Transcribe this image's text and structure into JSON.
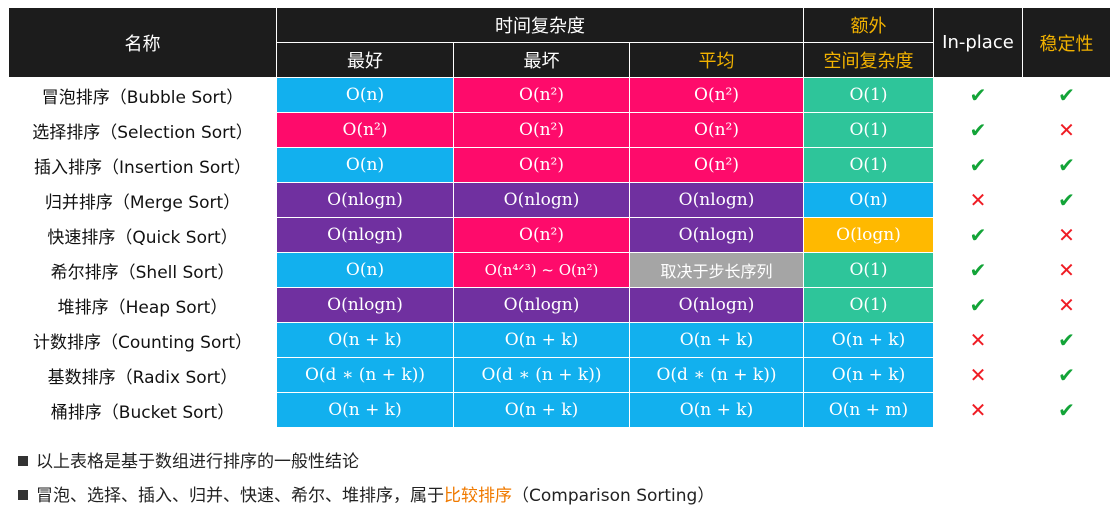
{
  "header": {
    "name": "名称",
    "time_group": "时间复杂度",
    "best": "最好",
    "worst": "最坏",
    "average": "平均",
    "space_line1": "额外",
    "space_line2": "空间复杂度",
    "inplace": "In-place",
    "stable": "稳定性"
  },
  "rows": [
    {
      "name": "冒泡排序（Bubble Sort）",
      "best": "O(n)",
      "worst": "O(n²)",
      "avg": "O(n²)",
      "space": "O(1)",
      "inplace": "✔",
      "stable": "✔"
    },
    {
      "name": "选择排序（Selection Sort）",
      "best": "O(n²)",
      "worst": "O(n²)",
      "avg": "O(n²)",
      "space": "O(1)",
      "inplace": "✔",
      "stable": "✕"
    },
    {
      "name": "插入排序（Insertion Sort）",
      "best": "O(n)",
      "worst": "O(n²)",
      "avg": "O(n²)",
      "space": "O(1)",
      "inplace": "✔",
      "stable": "✔"
    },
    {
      "name": "归并排序（Merge Sort）",
      "best": "O(nlogn)",
      "worst": "O(nlogn)",
      "avg": "O(nlogn)",
      "space": "O(n)",
      "inplace": "✕",
      "stable": "✔"
    },
    {
      "name": "快速排序（Quick Sort）",
      "best": "O(nlogn)",
      "worst": "O(n²)",
      "avg": "O(nlogn)",
      "space": "O(logn)",
      "inplace": "✔",
      "stable": "✕"
    },
    {
      "name": "希尔排序（Shell Sort）",
      "best": "O(n)",
      "worst": "O(n⁴ᐟ³) ~ O(n²)",
      "avg": "取决于步长序列",
      "space": "O(1)",
      "inplace": "✔",
      "stable": "✕"
    },
    {
      "name": "堆排序（Heap Sort）",
      "best": "O(nlogn)",
      "worst": "O(nlogn)",
      "avg": "O(nlogn)",
      "space": "O(1)",
      "inplace": "✔",
      "stable": "✕"
    },
    {
      "name": "计数排序（Counting Sort）",
      "best": "O(n + k)",
      "worst": "O(n + k)",
      "avg": "O(n + k)",
      "space": "O(n + k)",
      "inplace": "✕",
      "stable": "✔"
    },
    {
      "name": "基数排序（Radix Sort）",
      "best": "O(d ∗ (n + k))",
      "worst": "O(d ∗ (n + k))",
      "avg": "O(d ∗ (n + k))",
      "space": "O(n + k)",
      "inplace": "✕",
      "stable": "✔"
    },
    {
      "name": "桶排序（Bucket Sort）",
      "best": "O(n + k)",
      "worst": "O(n + k)",
      "avg": "O(n + k)",
      "space": "O(n + m)",
      "inplace": "✕",
      "stable": "✔"
    }
  ],
  "notes": {
    "line1": "以上表格是基于数组进行排序的一般性结论",
    "line2_prefix": "冒泡、选择、插入、归并、快速、希尔、堆排序，属于",
    "line2_highlight": "比较排序",
    "line2_suffix": "（Comparison Sorting）"
  },
  "colors": {
    "blue": "#12b0ee",
    "pink": "#fe0b6b",
    "purple": "#7030a0",
    "teal": "#2ec59a",
    "orange": "#ffb900",
    "gray": "#a5a5a5",
    "check": "#13a438",
    "cross": "#ef1c24"
  }
}
